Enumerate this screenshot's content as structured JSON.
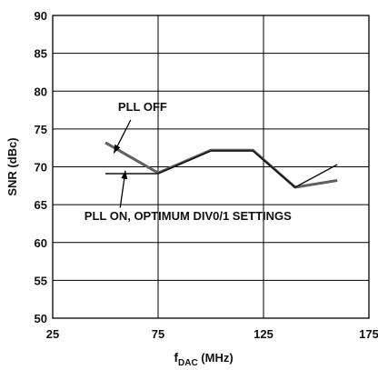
{
  "chart_data": {
    "type": "line",
    "xlabel_main": "f",
    "xlabel_sub": "DAC",
    "xlabel_unit": " (MHz)",
    "ylabel": "SNR (dBc)",
    "xlim": [
      25,
      175
    ],
    "ylim": [
      50,
      90
    ],
    "x_ticks": [
      25,
      75,
      125,
      175
    ],
    "y_ticks": [
      50,
      55,
      60,
      65,
      70,
      75,
      80,
      85,
      90
    ],
    "x_gridlines": [
      75,
      125
    ],
    "y_gridlines": [
      55,
      60,
      65,
      70,
      75,
      80,
      85
    ],
    "series": [
      {
        "name": "PLL OFF",
        "color": "#606060",
        "points": [
          [
            50,
            73.2
          ],
          [
            75,
            69.2
          ],
          [
            100,
            72.2
          ],
          [
            120,
            72.2
          ],
          [
            140,
            67.3
          ],
          [
            160,
            68.2
          ]
        ]
      },
      {
        "name": "PLL ON, OPTIMUM DIV0/1 SETTINGS",
        "color": "#111111",
        "points": [
          [
            50,
            69.1
          ],
          [
            75,
            69.1
          ],
          [
            100,
            72.1
          ],
          [
            120,
            72.1
          ],
          [
            140,
            67.3
          ],
          [
            160,
            70.3
          ]
        ]
      }
    ],
    "annotations": [
      {
        "text": "PLL OFF",
        "series": 0,
        "label_at": [
          56,
          77.4
        ],
        "arrow_from": [
          62,
          76.2
        ],
        "arrow_to": [
          54,
          71.8
        ]
      },
      {
        "text": "PLL ON, OPTIMUM DIV0/1 SETTINGS",
        "series": 1,
        "label_at": [
          40,
          63.0
        ],
        "arrow_from": [
          57,
          64.6
        ],
        "arrow_to": [
          59.5,
          69.5
        ]
      }
    ]
  }
}
